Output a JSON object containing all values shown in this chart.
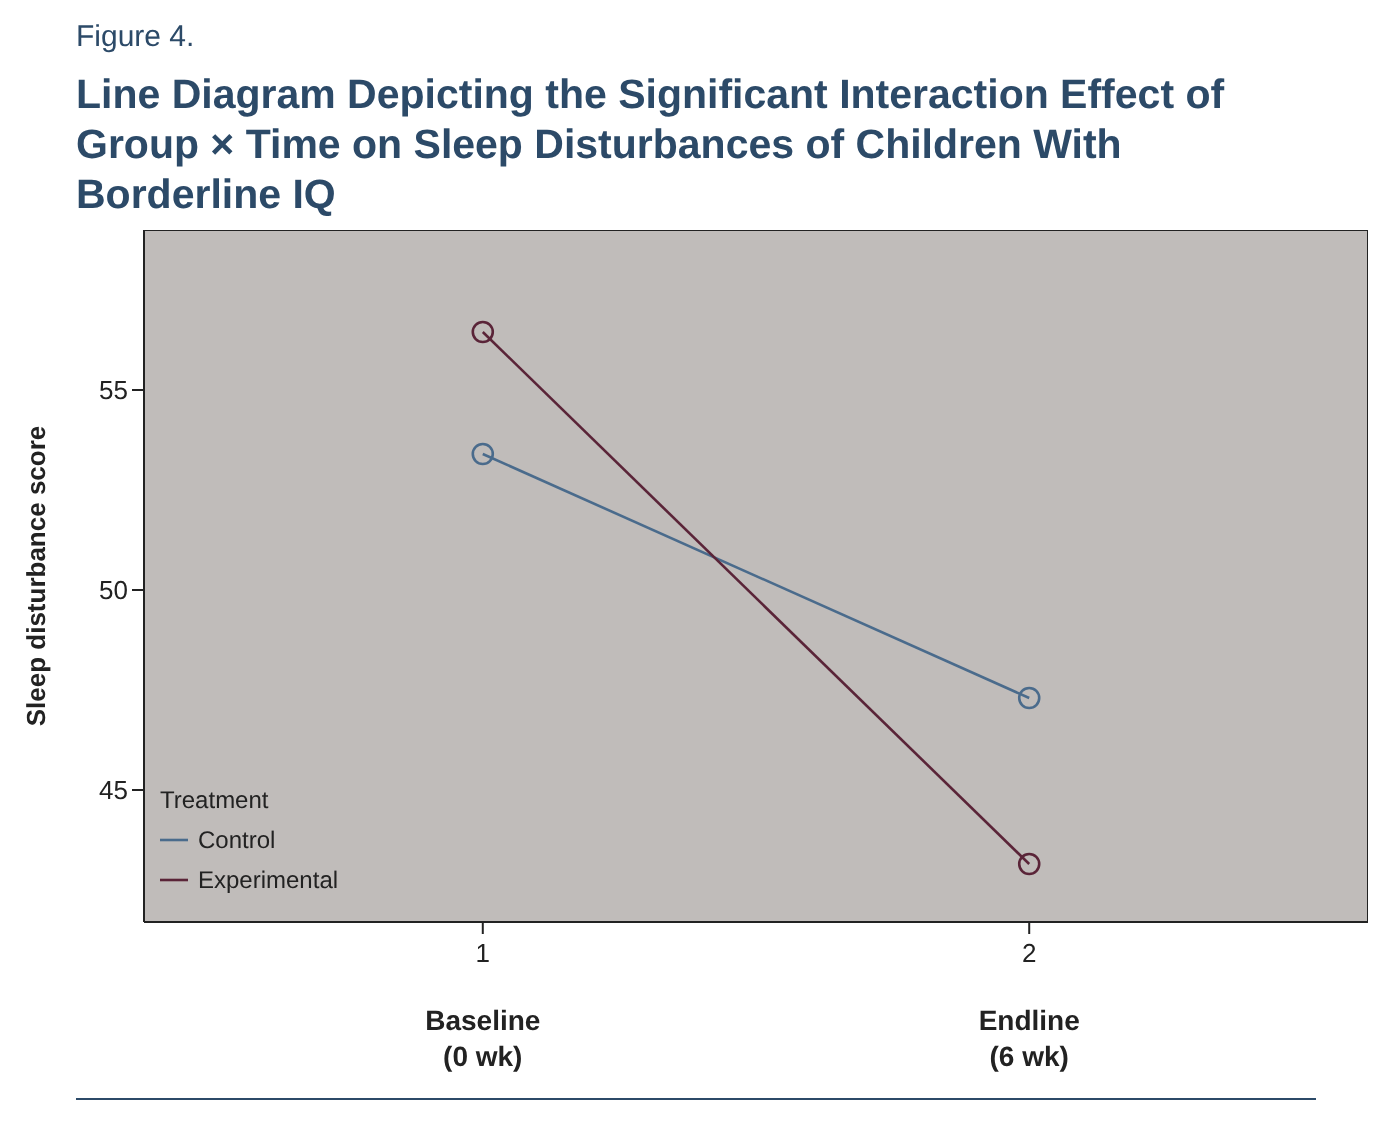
{
  "chart_data": {
    "type": "line",
    "title": "Line Diagram Depicting the Significant Interaction Effect of Group × Time on Sleep Disturbances of Children With Borderline IQ",
    "ylabel": "Sleep disturbance score",
    "legend_title": "Treatment",
    "x": [
      1,
      2
    ],
    "series": [
      {
        "name": "Control",
        "color": "#4a6b8c",
        "values": [
          53.4,
          47.3
        ]
      },
      {
        "name": "Experimental",
        "color": "#5a2438",
        "values": [
          56.45,
          43.15
        ]
      }
    ],
    "xlim": [
      0.38,
      2.62
    ],
    "xticks": [
      1,
      2
    ],
    "ylim": [
      41.7,
      59
    ],
    "yticks": [
      45,
      50,
      55
    ],
    "grid": false,
    "legend": "bottom left",
    "marker": "circle",
    "line_style": "solid",
    "annotations": [
      "Figure 4.",
      "Baseline (0 wk)",
      "Endline (6 wk)"
    ]
  }
}
